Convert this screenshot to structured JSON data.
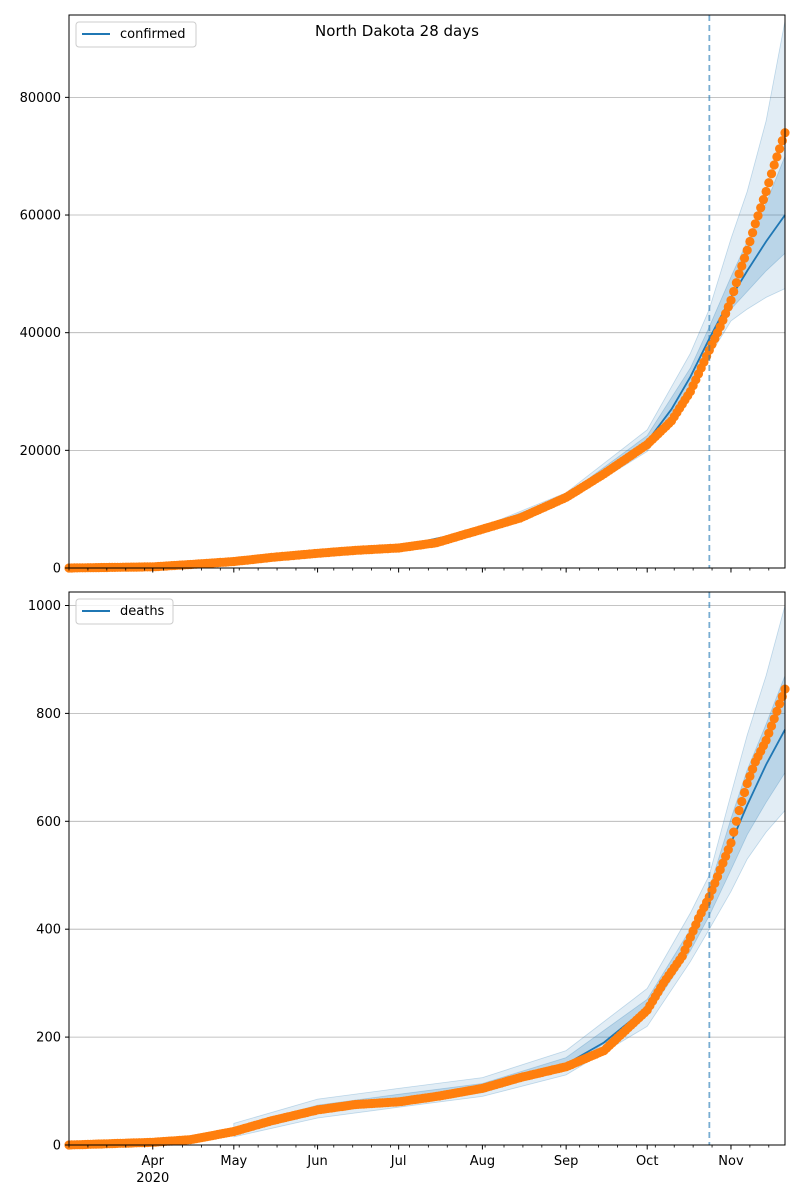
{
  "title": "North Dakota 28 days",
  "colors": {
    "model_line": "#1f77b4",
    "band_fill": "#1f77b4",
    "observed_points": "#ff7f0e",
    "forecast_start_line": "#1f77b4",
    "grid": "#b0b0b0"
  },
  "chart_data": [
    {
      "type": "line",
      "panel": "top",
      "title": "North Dakota 28 days",
      "xlabel": "",
      "ylabel": "",
      "xlim": [
        "2020-03-01",
        "2020-11-21"
      ],
      "ylim": [
        0,
        94000
      ],
      "yticks": [
        0,
        20000,
        40000,
        60000,
        80000
      ],
      "ytick_labels": [
        "0",
        "20000",
        "40000",
        "60000",
        "80000"
      ],
      "grid": "horizontal",
      "legend": {
        "placement": "top-left",
        "entries": [
          "confirmed"
        ]
      },
      "forecast_start": "2020-10-24",
      "series": [
        {
          "name": "confirmed",
          "kind": "model_median",
          "x": [
            "2020-03-01",
            "2020-04-01",
            "2020-05-01",
            "2020-06-01",
            "2020-07-01",
            "2020-08-01",
            "2020-09-01",
            "2020-09-15",
            "2020-10-01",
            "2020-10-10",
            "2020-10-17",
            "2020-10-24",
            "2020-11-01",
            "2020-11-07",
            "2020-11-14",
            "2020-11-21"
          ],
          "y": [
            0,
            200,
            1100,
            2600,
            3600,
            6700,
            12000,
            15500,
            21500,
            27000,
            32500,
            39000,
            46000,
            50500,
            55500,
            60000
          ]
        },
        {
          "name": "",
          "kind": "observed",
          "x": [
            "2020-03-01",
            "2020-04-01",
            "2020-04-15",
            "2020-05-01",
            "2020-05-15",
            "2020-06-01",
            "2020-06-15",
            "2020-07-01",
            "2020-07-15",
            "2020-08-01",
            "2020-08-15",
            "2020-09-01",
            "2020-09-15",
            "2020-10-01",
            "2020-10-10",
            "2020-10-17",
            "2020-10-24",
            "2020-10-28",
            "2020-11-01",
            "2020-11-04",
            "2020-11-07",
            "2020-11-10",
            "2020-11-14",
            "2020-11-17",
            "2020-11-21"
          ],
          "y": [
            0,
            200,
            600,
            1100,
            1800,
            2500,
            3000,
            3400,
            4300,
            6600,
            8500,
            12000,
            16000,
            21000,
            25000,
            30000,
            37000,
            41000,
            45500,
            50000,
            54000,
            58500,
            64000,
            68500,
            74000
          ]
        }
      ],
      "bands": [
        {
          "x": [
            "2020-08-01",
            "2020-09-01",
            "2020-10-01",
            "2020-10-17",
            "2020-10-24",
            "2020-11-01",
            "2020-11-07",
            "2020-11-14",
            "2020-11-21"
          ],
          "lower": [
            6400,
            11300,
            19800,
            29500,
            36000,
            42000,
            44000,
            46000,
            47500
          ],
          "upper": [
            7000,
            12800,
            23500,
            36500,
            44000,
            56000,
            64000,
            76000,
            93000
          ]
        },
        {
          "x": [
            "2020-08-01",
            "2020-09-01",
            "2020-10-01",
            "2020-10-17",
            "2020-10-24",
            "2020-11-01",
            "2020-11-07",
            "2020-11-14",
            "2020-11-21"
          ],
          "lower": [
            6550,
            11650,
            20600,
            31000,
            37500,
            44000,
            47000,
            50500,
            53500
          ],
          "upper": [
            6850,
            12400,
            22500,
            34000,
            41000,
            49500,
            55500,
            62000,
            70000
          ]
        }
      ]
    },
    {
      "type": "line",
      "panel": "bottom",
      "title": "",
      "xlabel": "",
      "ylabel": "",
      "xlim": [
        "2020-03-01",
        "2020-11-21"
      ],
      "ylim": [
        0,
        1025
      ],
      "yticks": [
        0,
        200,
        400,
        600,
        800,
        1000
      ],
      "ytick_labels": [
        "0",
        "200",
        "400",
        "600",
        "800",
        "1000"
      ],
      "grid": "horizontal",
      "legend": {
        "placement": "top-left",
        "entries": [
          "deaths"
        ]
      },
      "forecast_start": "2020-10-24",
      "x_tick_labels": [
        "Apr",
        "May",
        "Jun",
        "Jul",
        "Aug",
        "Sep",
        "Oct",
        "Nov"
      ],
      "x_tick_dates": [
        "2020-04-01",
        "2020-05-01",
        "2020-06-01",
        "2020-07-01",
        "2020-08-01",
        "2020-09-01",
        "2020-10-01",
        "2020-11-01"
      ],
      "x_year_label": "2020",
      "series": [
        {
          "name": "deaths",
          "kind": "model_median",
          "x": [
            "2020-03-01",
            "2020-04-01",
            "2020-04-15",
            "2020-05-01",
            "2020-05-15",
            "2020-06-01",
            "2020-06-15",
            "2020-07-01",
            "2020-07-15",
            "2020-08-01",
            "2020-08-15",
            "2020-09-01",
            "2020-09-15",
            "2020-10-01",
            "2020-10-10",
            "2020-10-17",
            "2020-10-24",
            "2020-11-01",
            "2020-11-07",
            "2020-11-14",
            "2020-11-21"
          ],
          "y": [
            0,
            5,
            10,
            25,
            45,
            65,
            78,
            85,
            92,
            105,
            120,
            150,
            190,
            255,
            320,
            380,
            450,
            560,
            630,
            705,
            770
          ]
        },
        {
          "name": "",
          "kind": "observed",
          "x": [
            "2020-03-01",
            "2020-04-01",
            "2020-04-15",
            "2020-05-01",
            "2020-05-15",
            "2020-06-01",
            "2020-06-15",
            "2020-07-01",
            "2020-07-15",
            "2020-08-01",
            "2020-08-15",
            "2020-09-01",
            "2020-09-15",
            "2020-10-01",
            "2020-10-07",
            "2020-10-14",
            "2020-10-20",
            "2020-10-24",
            "2020-10-28",
            "2020-11-01",
            "2020-11-04",
            "2020-11-07",
            "2020-11-10",
            "2020-11-14",
            "2020-11-17",
            "2020-11-21"
          ],
          "y": [
            0,
            5,
            10,
            25,
            45,
            65,
            75,
            80,
            90,
            105,
            125,
            145,
            175,
            250,
            300,
            350,
            420,
            460,
            510,
            560,
            620,
            670,
            710,
            750,
            790,
            845
          ]
        }
      ],
      "bands": [
        {
          "x": [
            "2020-05-01",
            "2020-06-01",
            "2020-07-01",
            "2020-08-01",
            "2020-09-01",
            "2020-10-01",
            "2020-10-17",
            "2020-10-24",
            "2020-11-01",
            "2020-11-07",
            "2020-11-14",
            "2020-11-21"
          ],
          "lower": [
            15,
            50,
            70,
            90,
            130,
            220,
            340,
            400,
            470,
            530,
            580,
            620
          ],
          "upper": [
            40,
            85,
            105,
            125,
            175,
            290,
            430,
            500,
            650,
            760,
            870,
            1000
          ]
        },
        {
          "x": [
            "2020-05-01",
            "2020-06-01",
            "2020-07-01",
            "2020-08-01",
            "2020-09-01",
            "2020-10-01",
            "2020-10-17",
            "2020-10-24",
            "2020-11-01",
            "2020-11-07",
            "2020-11-14",
            "2020-11-21"
          ],
          "lower": [
            20,
            58,
            78,
            97,
            142,
            240,
            360,
            425,
            510,
            575,
            635,
            690
          ],
          "upper": [
            32,
            74,
            94,
            114,
            162,
            270,
            400,
            475,
            605,
            695,
            780,
            870
          ]
        }
      ]
    }
  ]
}
